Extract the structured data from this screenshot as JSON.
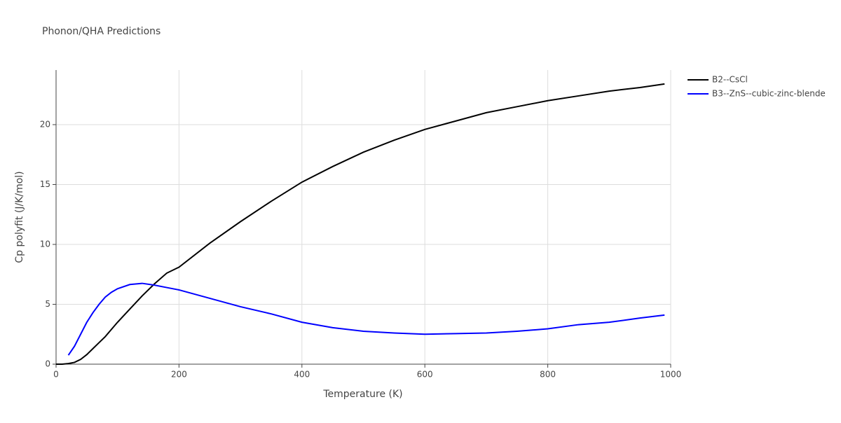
{
  "chart_data": {
    "type": "line",
    "title": "Phonon/QHA Predictions",
    "x_label": "Temperature (K)",
    "y_label": "Cp polyfit (J/K/mol)",
    "x": [
      0,
      10,
      20,
      30,
      40,
      50,
      60,
      70,
      80,
      90,
      100,
      120,
      140,
      160,
      180,
      200,
      250,
      300,
      350,
      400,
      450,
      500,
      550,
      600,
      650,
      700,
      750,
      800,
      850,
      900,
      950,
      990
    ],
    "series": [
      {
        "name": "B2--CsCl",
        "color": "#000000",
        "values": [
          0,
          0,
          0.05,
          0.15,
          0.4,
          0.8,
          1.3,
          1.8,
          2.3,
          2.9,
          3.5,
          4.6,
          5.7,
          6.7,
          7.6,
          8.1,
          10.1,
          11.9,
          13.6,
          15.2,
          16.5,
          17.7,
          18.7,
          19.6,
          20.3,
          21.0,
          21.5,
          22.0,
          22.4,
          22.8,
          23.1,
          23.4
        ]
      },
      {
        "name": "B3--ZnS--cubic-zinc-blende",
        "color": "#0000ff",
        "values": [
          null,
          null,
          0.75,
          1.5,
          2.5,
          3.5,
          4.3,
          5.0,
          5.6,
          6.0,
          6.3,
          6.65,
          6.75,
          6.6,
          6.4,
          6.2,
          5.5,
          4.8,
          4.2,
          3.5,
          3.05,
          2.75,
          2.6,
          2.5,
          2.55,
          2.6,
          2.75,
          2.95,
          3.3,
          3.5,
          3.85,
          4.1
        ]
      }
    ],
    "xlim": [
      0,
      1000
    ],
    "xticks": [
      0,
      200,
      400,
      600,
      800,
      1000
    ],
    "ylim": [
      0,
      24.56
    ],
    "yticks": [
      0,
      5,
      10,
      15,
      20
    ],
    "grid": true,
    "legend": "right"
  }
}
